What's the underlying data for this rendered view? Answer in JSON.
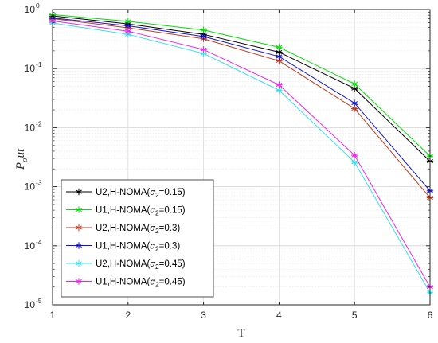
{
  "chart_data": {
    "type": "line",
    "title": "",
    "xlabel": "T",
    "ylabel": "P_out",
    "ylabel_parts": {
      "base": "P",
      "sub": "o",
      "rest": "ut"
    },
    "xlim": [
      1,
      6
    ],
    "ylim": [
      1e-05,
      1
    ],
    "yscale": "log",
    "grid": true,
    "legend_position": "bottom-left",
    "x": [
      1,
      2,
      3,
      4,
      5,
      6
    ],
    "xticks": [
      "1",
      "2",
      "3",
      "4",
      "5",
      "6"
    ],
    "yticks": [
      {
        "value": 1e-05,
        "base": "10",
        "exp": "-5"
      },
      {
        "value": 0.0001,
        "base": "10",
        "exp": "-4"
      },
      {
        "value": 0.001,
        "base": "10",
        "exp": "-3"
      },
      {
        "value": 0.01,
        "base": "10",
        "exp": "-2"
      },
      {
        "value": 0.1,
        "base": "10",
        "exp": "-1"
      },
      {
        "value": 1,
        "base": "10",
        "exp": "0"
      }
    ],
    "series": [
      {
        "name_prefix": "U2,H-NOMA(",
        "alpha": "α",
        "alpha_sub": "2",
        "name_suffix": "=0.15)",
        "color": "#000000",
        "marker": "asterisk",
        "values": [
          0.78,
          0.57,
          0.38,
          0.19,
          0.046,
          0.0027
        ]
      },
      {
        "name_prefix": "U1,H-NOMA(",
        "alpha": "α",
        "alpha_sub": "2",
        "name_suffix": "=0.15)",
        "color": "#00dd00",
        "marker": "asterisk",
        "values": [
          0.82,
          0.63,
          0.45,
          0.23,
          0.055,
          0.0033
        ]
      },
      {
        "name_prefix": "U2,H-NOMA(",
        "alpha": "α",
        "alpha_sub": "2",
        "name_suffix": "=0.3)",
        "color": "#c0391e",
        "marker": "asterisk",
        "values": [
          0.7,
          0.49,
          0.32,
          0.135,
          0.021,
          0.00065
        ]
      },
      {
        "name_prefix": "U1,H-NOMA(",
        "alpha": "α",
        "alpha_sub": "2",
        "name_suffix": "=0.3)",
        "color": "#1010cc",
        "marker": "asterisk",
        "values": [
          0.72,
          0.53,
          0.35,
          0.16,
          0.026,
          0.00085
        ]
      },
      {
        "name_prefix": "U2,H-NOMA(",
        "alpha": "α",
        "alpha_sub": "2",
        "name_suffix": "=0.45)",
        "color": "#33e0ee",
        "marker": "asterisk",
        "values": [
          0.59,
          0.38,
          0.18,
          0.043,
          0.0026,
          1.6e-05
        ]
      },
      {
        "name_prefix": "U1,H-NOMA(",
        "alpha": "α",
        "alpha_sub": "2",
        "name_suffix": "=0.45)",
        "color": "#ee22ee",
        "marker": "asterisk",
        "values": [
          0.64,
          0.43,
          0.21,
          0.053,
          0.0034,
          2e-05
        ]
      }
    ]
  }
}
